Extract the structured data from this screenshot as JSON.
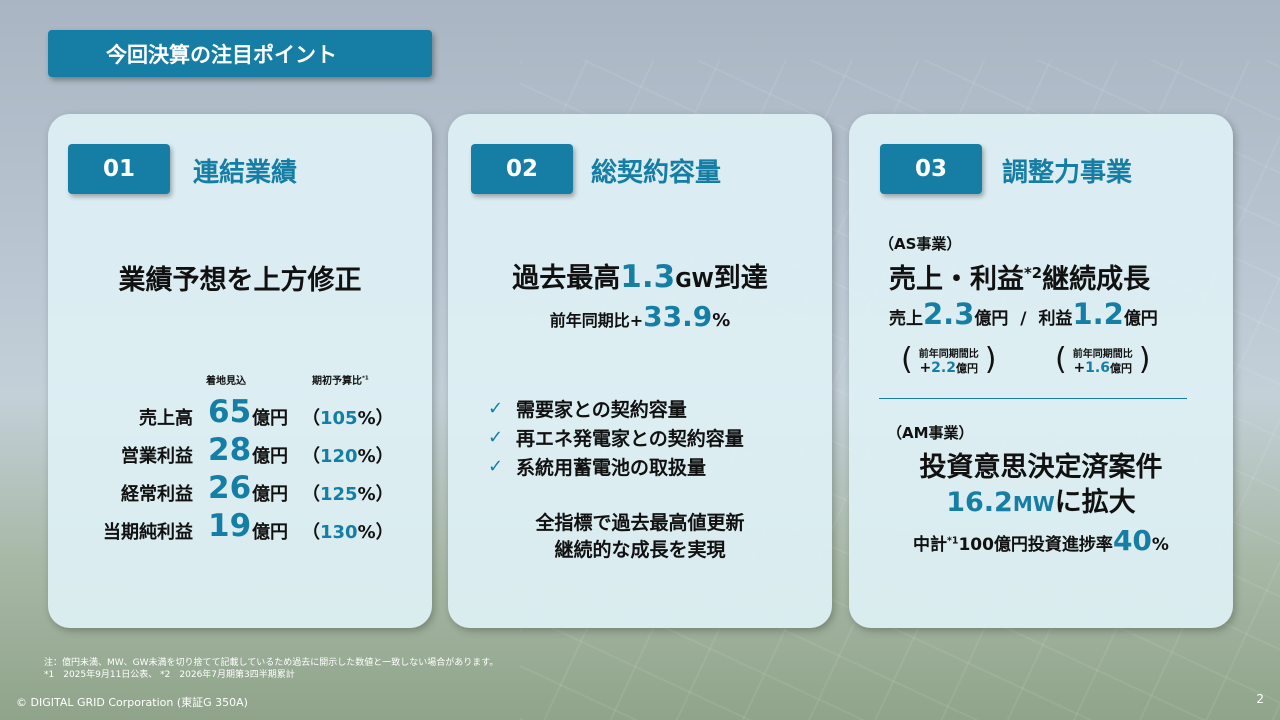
{
  "header": {
    "title": "今回決算の注目ポイント"
  },
  "cards": [
    {
      "number": "01",
      "title": "連結業績",
      "headline": "業績予想を上方修正",
      "col_headers": {
        "forecast": "着地見込",
        "ratio": "期初予算比",
        "ratio_note": "*1"
      },
      "rows": [
        {
          "label": "売上高",
          "value": "65",
          "unit": "億円",
          "ratio_open": "（",
          "ratio": "105",
          "ratio_close": "%）"
        },
        {
          "label": "営業利益",
          "value": "28",
          "unit": "億円",
          "ratio_open": "（",
          "ratio": "120",
          "ratio_close": "%）"
        },
        {
          "label": "経常利益",
          "value": "26",
          "unit": "億円",
          "ratio_open": "（",
          "ratio": "125",
          "ratio_close": "%）"
        },
        {
          "label": "当期純利益",
          "value": "19",
          "unit": "億円",
          "ratio_open": "（",
          "ratio": "130",
          "ratio_close": "%）"
        }
      ]
    },
    {
      "number": "02",
      "title": "総契約容量",
      "headline_pre": "過去最高",
      "headline_val": "1.3",
      "headline_unit": "GW",
      "headline_post": "到達",
      "yoy_label": "前年同期比+",
      "yoy_value": "33.9",
      "yoy_unit": "%",
      "checks": [
        "需要家との契約容量",
        "再エネ発電家との契約容量",
        "系統用蓄電池の取扱量"
      ],
      "conclusion_line1": "全指標で過去最高値更新",
      "conclusion_line2": "継続的な成長を実現"
    },
    {
      "number": "03",
      "title": "調整力事業",
      "as_label": "（AS事業）",
      "as_headline_pre": "売上・利益",
      "as_headline_note": "*2",
      "as_headline_post": "継続成長",
      "sales_label": "売上",
      "sales_value": "2.3",
      "sales_unit": "億円",
      "separator": "/",
      "profit_label": "利益",
      "profit_value": "1.2",
      "profit_unit": "億円",
      "yoy_label": "前年同期間比",
      "sales_yoy_sign": "+",
      "sales_yoy": "2.2",
      "sales_yoy_unit": "億円",
      "profit_yoy_sign": "+",
      "profit_yoy": "1.6",
      "profit_yoy_unit": "億円",
      "am_label": "（AM事業）",
      "am_headline": "投資意思決定済案件",
      "am_value": "16.2",
      "am_unit": "MW",
      "am_post": "に拡大",
      "plan_pre": "中計",
      "plan_note": "*1",
      "plan_mid": "100億円投資進捗率",
      "plan_value": "40",
      "plan_unit": "%"
    }
  ],
  "footnotes": {
    "note": "注：億円未満、MW、GW未満を切り捨てて記載しているため過去に開示した数値と一致しない場合があります。",
    "refs": "*1　2025年9月11日公表、 *2　2026年7月期第3四半期累計"
  },
  "footer": {
    "copyright": "© DIGITAL GRID Corporation (東証G 350A)",
    "page": "2"
  },
  "colors": {
    "accent": "#167ea4",
    "card_bg": "#def0f4"
  }
}
